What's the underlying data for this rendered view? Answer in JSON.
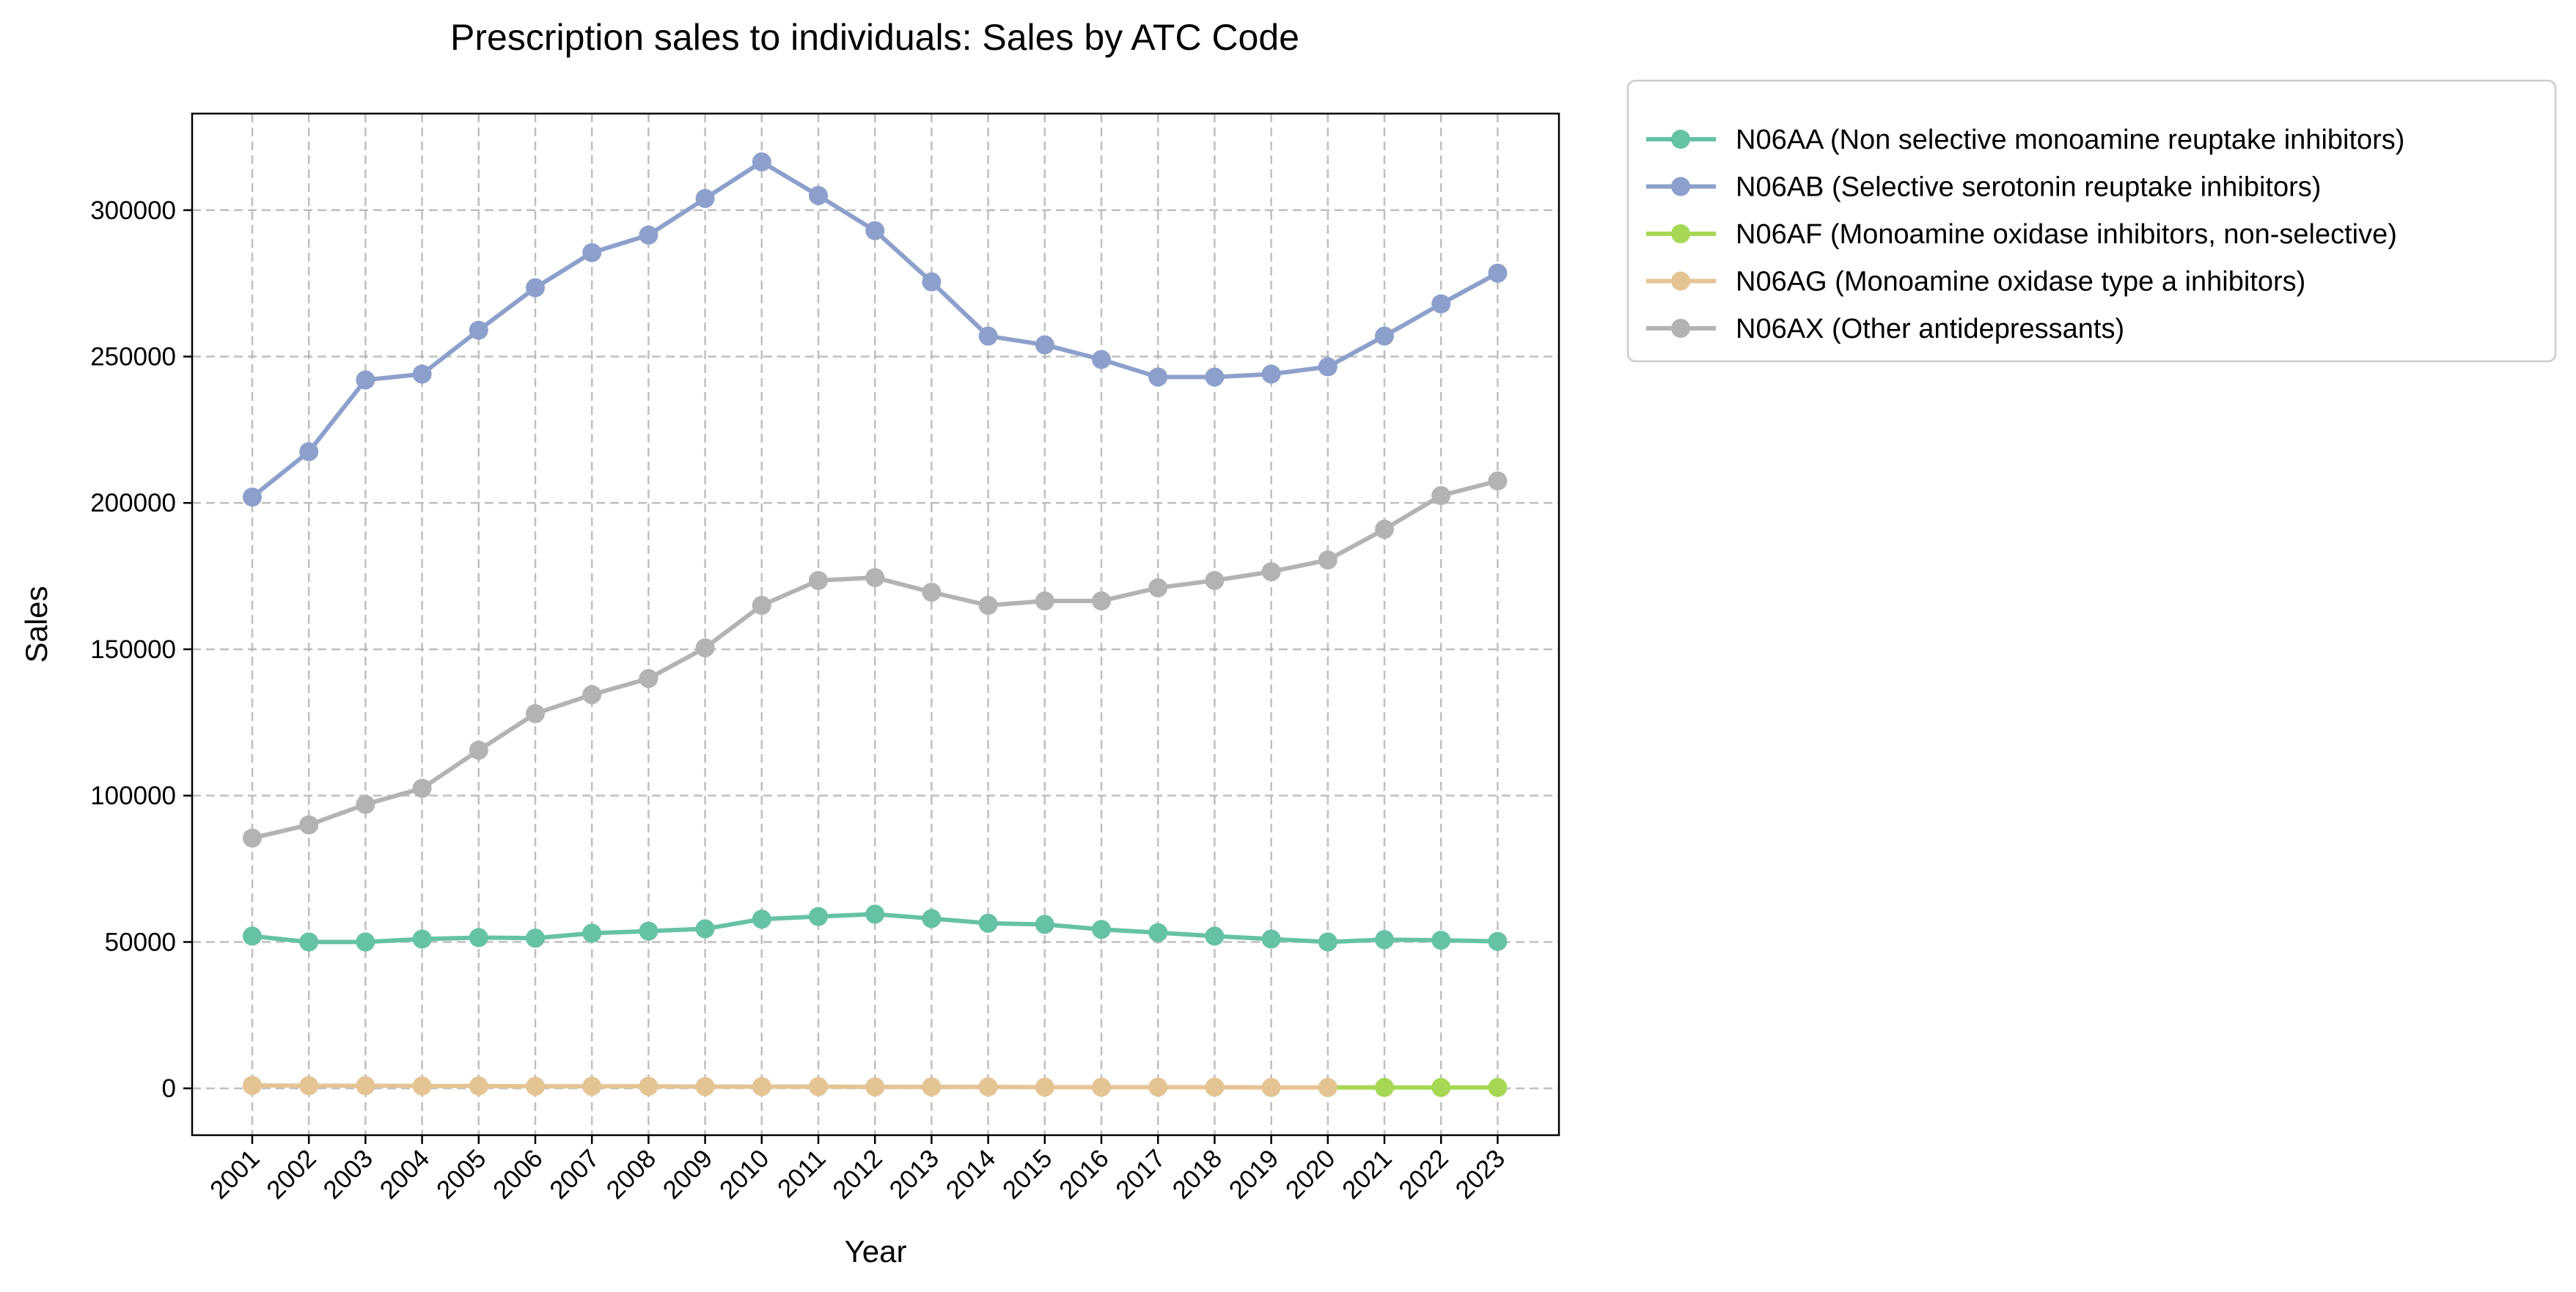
{
  "chart_data": {
    "type": "line",
    "title": "Prescription sales to individuals: Sales by ATC Code",
    "xlabel": "Year",
    "ylabel": "Sales",
    "x": [
      "2001",
      "2002",
      "2003",
      "2004",
      "2005",
      "2006",
      "2007",
      "2008",
      "2009",
      "2010",
      "2011",
      "2012",
      "2013",
      "2014",
      "2015",
      "2016",
      "2017",
      "2018",
      "2019",
      "2020",
      "2021",
      "2022",
      "2023"
    ],
    "ylim": [
      -16000,
      333000
    ],
    "yticks": [
      0,
      50000,
      100000,
      150000,
      200000,
      250000,
      300000
    ],
    "grid": true,
    "legend_position": "outside-top-right",
    "series": [
      {
        "name": "N06AA (Non selective monoamine reuptake inhibitors)",
        "color": "#66c2a5",
        "values": [
          52000,
          50000,
          50000,
          51000,
          51500,
          51300,
          53000,
          53700,
          54500,
          57800,
          58700,
          59500,
          58000,
          56400,
          56000,
          54300,
          53200,
          52000,
          51000,
          50000,
          50800,
          50600,
          50200
        ]
      },
      {
        "name": "N06AB (Selective serotonin reuptake inhibitors)",
        "color": "#8da0cb",
        "values": [
          202000,
          217500,
          242000,
          244000,
          259000,
          273500,
          285500,
          291500,
          304000,
          316500,
          305000,
          293000,
          275500,
          257000,
          254000,
          249000,
          243000,
          243000,
          244000,
          246500,
          257000,
          268000,
          278500
        ]
      },
      {
        "name": "N06AF (Monoamine oxidase inhibitors, non-selective)",
        "color": "#a6d854",
        "values": [
          null,
          null,
          null,
          null,
          null,
          null,
          null,
          null,
          null,
          null,
          null,
          null,
          null,
          null,
          null,
          null,
          null,
          null,
          null,
          300,
          300,
          300,
          300
        ]
      },
      {
        "name": "N06AG (Monoamine oxidase type a inhibitors)",
        "color": "#e5c494",
        "values": [
          1000,
          900,
          900,
          800,
          800,
          700,
          700,
          700,
          600,
          600,
          600,
          500,
          500,
          500,
          400,
          400,
          400,
          400,
          300,
          300,
          null,
          null,
          null
        ]
      },
      {
        "name": "N06AX (Other antidepressants)",
        "color": "#b3b3b3",
        "values": [
          85500,
          90000,
          97000,
          102500,
          115500,
          128000,
          134500,
          140000,
          150500,
          165000,
          173500,
          174500,
          169500,
          165000,
          166500,
          166500,
          171000,
          173500,
          176500,
          180500,
          191000,
          202500,
          207500
        ]
      }
    ]
  }
}
